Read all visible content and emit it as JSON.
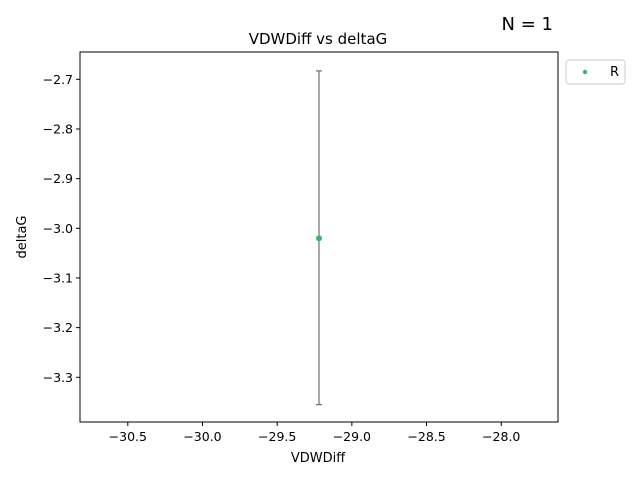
{
  "chart_data": {
    "type": "scatter",
    "title": "VDWDiff vs deltaG",
    "xlabel": "VDWDiff",
    "ylabel": "deltaG",
    "xlim": [
      -30.82,
      -27.62
    ],
    "ylim": [
      -3.39,
      -2.645
    ],
    "xticks": [
      -30.5,
      -30.0,
      -29.5,
      -29.0,
      -28.5,
      -28.0
    ],
    "xtick_labels": [
      "−30.5",
      "−30.0",
      "−29.5",
      "−29.0",
      "−28.5",
      "−28.0"
    ],
    "yticks": [
      -2.7,
      -2.8,
      -2.9,
      -3.0,
      -3.1,
      -3.2,
      -3.3
    ],
    "ytick_labels": [
      "−2.7",
      "−2.8",
      "−2.9",
      "−3.0",
      "−3.1",
      "−3.2",
      "−3.3"
    ],
    "series": [
      {
        "name": "R",
        "color": "#3cb371",
        "points": [
          {
            "x": -29.22,
            "y": -3.02,
            "yerr_low": -3.355,
            "yerr_high": -2.683
          }
        ]
      }
    ],
    "errorbar_color": "#707070",
    "annotation": "N = 1",
    "legend": "outside-top-right",
    "grid": false
  }
}
